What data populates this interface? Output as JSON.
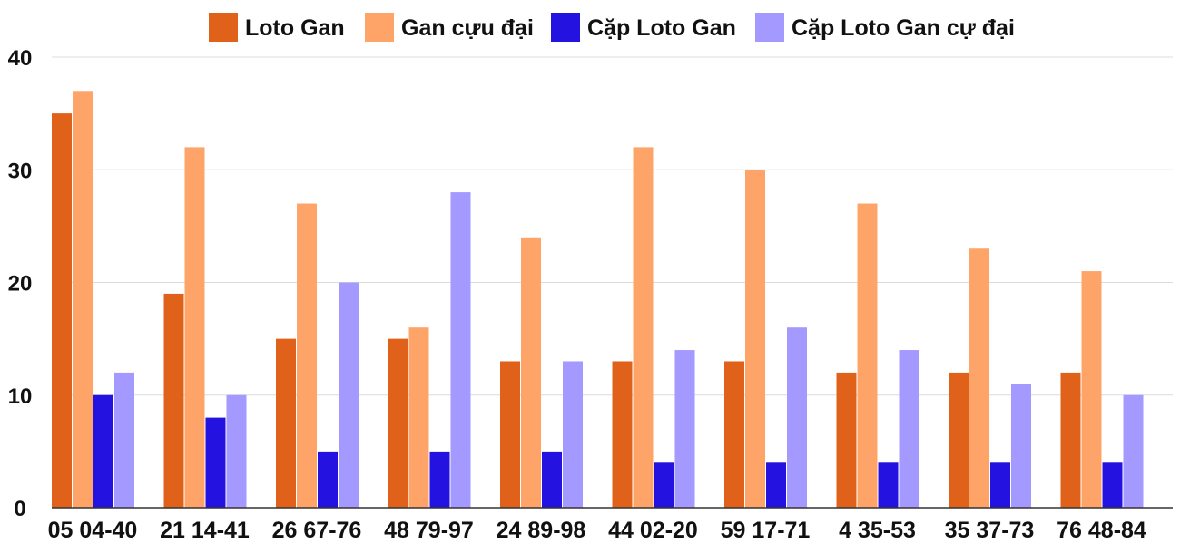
{
  "chart_data": {
    "type": "bar",
    "title": "",
    "xlabel": "",
    "ylabel": "",
    "ylim": [
      0,
      40
    ],
    "yticks": [
      0,
      10,
      20,
      30,
      40
    ],
    "grid": true,
    "legend_position": "top-center",
    "categories": [
      "05 04-40",
      "21 14-41",
      "26 67-76",
      "48 79-97",
      "24 89-98",
      "44 02-20",
      "59 17-71",
      "4 35-53",
      "35 37-73",
      "76 48-84"
    ],
    "series": [
      {
        "name": "Loto Gan",
        "color": "#e0611a",
        "values": [
          35,
          19,
          15,
          15,
          13,
          13,
          13,
          12,
          12,
          12
        ]
      },
      {
        "name": "Gan cựu đại",
        "color": "#ffa468",
        "values": [
          37,
          32,
          27,
          16,
          24,
          32,
          30,
          27,
          23,
          21
        ]
      },
      {
        "name": "Cặp Loto Gan",
        "color": "#2412e0",
        "values": [
          10,
          8,
          5,
          5,
          5,
          4,
          4,
          4,
          4,
          4
        ]
      },
      {
        "name": "Cặp Loto Gan cự đại",
        "color": "#a399ff",
        "values": [
          12,
          10,
          20,
          28,
          13,
          14,
          16,
          14,
          11,
          10
        ]
      }
    ]
  }
}
